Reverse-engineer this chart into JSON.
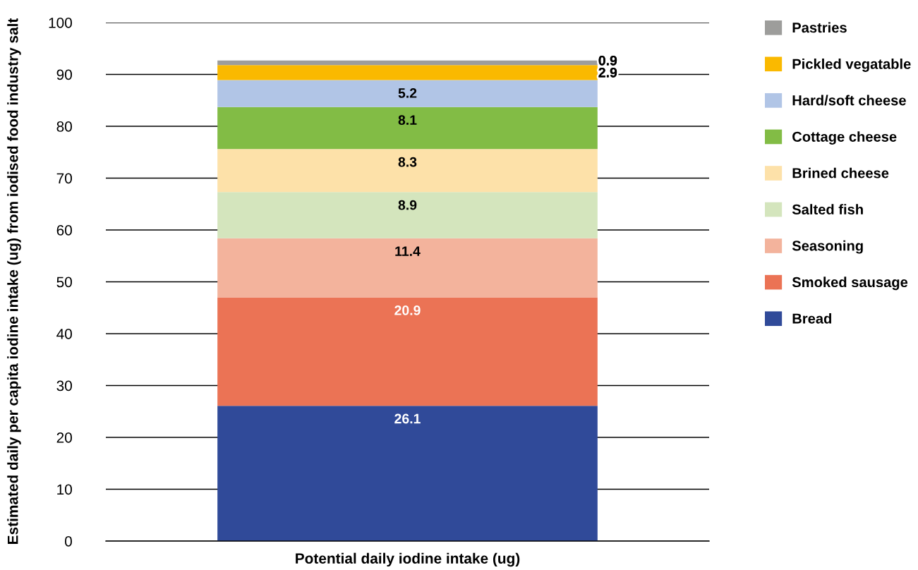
{
  "chart_data": {
    "type": "bar",
    "stacked": true,
    "xlabel": "Potential daily iodine intake (ug)",
    "ylabel": "Estimated daily per capita iodine intake (ug) from iodised food industry salt",
    "categories": [
      null
    ],
    "series": [
      {
        "name": "Bread",
        "color": "#304a99",
        "values": [
          26.1
        ]
      },
      {
        "name": "Smoked sausage",
        "color": "#eb7355",
        "values": [
          20.9
        ]
      },
      {
        "name": "Seasoning",
        "color": "#f3b39c",
        "values": [
          11.4
        ]
      },
      {
        "name": "Salted fish",
        "color": "#d4e5bd",
        "values": [
          8.9
        ]
      },
      {
        "name": "Brined cheese",
        "color": "#fde1a9",
        "values": [
          8.3
        ]
      },
      {
        "name": "Cottage cheese",
        "color": "#82bc45",
        "values": [
          8.1
        ]
      },
      {
        "name": "Hard/soft cheese",
        "color": "#b1c5e6",
        "values": [
          5.2
        ]
      },
      {
        "name": "Pickled vegatable",
        "color": "#fab900",
        "values": [
          2.9
        ]
      },
      {
        "name": "Pastries",
        "color": "#9d9d9b",
        "values": [
          0.9
        ]
      }
    ],
    "ylim": [
      0,
      100
    ],
    "yticks": [
      0,
      10,
      20,
      30,
      40,
      50,
      60,
      70,
      80,
      90,
      100
    ],
    "grid": "y",
    "legend": "right",
    "data_labels": true,
    "tick_labels": "y"
  }
}
